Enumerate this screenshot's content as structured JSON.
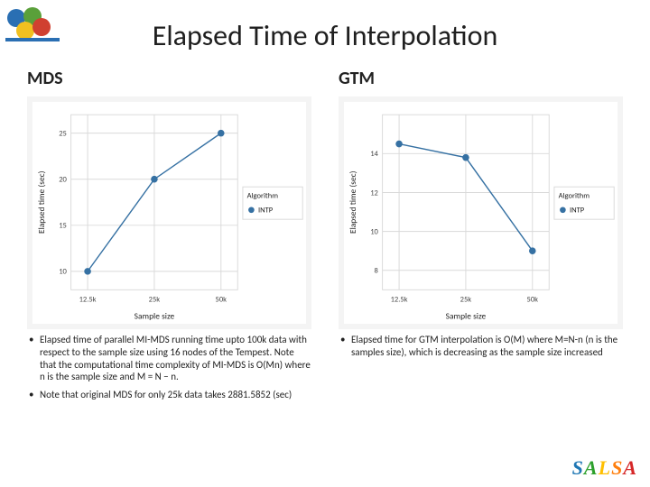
{
  "title": "Elapsed Time of Interpolation",
  "logo_colors": [
    "#2a6fb3",
    "#5aa03a",
    "#f0c020",
    "#d04030"
  ],
  "salsa": [
    "S",
    "A",
    "L",
    "S",
    "A"
  ],
  "left": {
    "heading": "MDS",
    "chart": {
      "type": "line",
      "background_color": "#ffffff",
      "panel_color": "#f4f4f4",
      "grid_color": "#d9d9d9",
      "line_color": "#3671a3",
      "marker_style": "circle",
      "marker_size": 4,
      "line_width": 1.5,
      "xlabel": "Sample size",
      "ylabel": "Elapsed time (sec)",
      "label_fontsize": 10,
      "tick_fontsize": 9,
      "legend_title": "Algorithm",
      "legend_items": [
        "INTP"
      ],
      "legend_pos": "right-middle",
      "x_categories": [
        "12.5k",
        "25k",
        "50k"
      ],
      "values": [
        10,
        20,
        25
      ],
      "ylim": [
        8,
        27
      ],
      "yticks": [
        10,
        15,
        20,
        25
      ]
    },
    "bullets": [
      "Elapsed time of parallel MI-MDS running time upto 100k data with respect to the sample size using 16 nodes of the Tempest. Note that the computational time complexity of MI-MDS is O(Mn) where n is the sample size and M = N − n.",
      "Note that original MDS for only 25k data takes 2881.5852 (sec)"
    ]
  },
  "right": {
    "heading": "GTM",
    "chart": {
      "type": "line",
      "background_color": "#ffffff",
      "panel_color": "#f4f4f4",
      "grid_color": "#d9d9d9",
      "line_color": "#3671a3",
      "marker_style": "circle",
      "marker_size": 4,
      "line_width": 1.5,
      "xlabel": "Sample size",
      "ylabel": "Elapsed time (sec)",
      "label_fontsize": 10,
      "tick_fontsize": 9,
      "legend_title": "Algorithm",
      "legend_items": [
        "INTP"
      ],
      "legend_pos": "right-middle",
      "x_categories": [
        "12.5k",
        "25k",
        "50k"
      ],
      "values": [
        14.5,
        13.8,
        9.0
      ],
      "ylim": [
        7,
        16
      ],
      "yticks": [
        8,
        10,
        12,
        14
      ]
    },
    "bullets": [
      "Elapsed time for GTM interpolation is O(M) where M=N-n (n is the samples size), which is decreasing as the sample size increased"
    ]
  }
}
